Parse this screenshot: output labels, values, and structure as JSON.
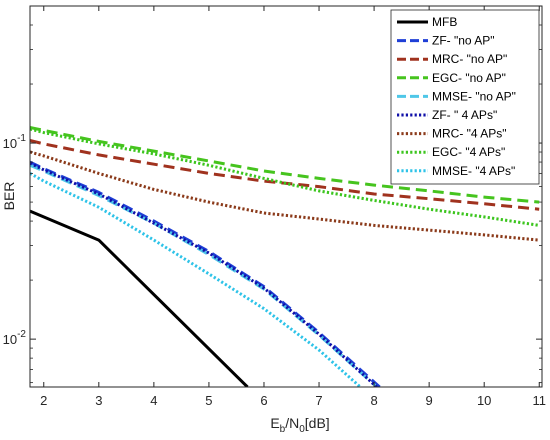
{
  "chart_data": {
    "type": "line",
    "title": "",
    "xlabel": "E_b/N_0[dB]",
    "xlabel_main": "E",
    "xlabel_sub1": "b",
    "xlabel_mid": "/N",
    "xlabel_sub2": "0",
    "xlabel_tail": "[dB]",
    "ylabel": "BER",
    "xlim": [
      1.75,
      11.05
    ],
    "ylim": [
      0.0057,
      0.5
    ],
    "yscale": "log",
    "grid": false,
    "legend_position": "top-right",
    "xticks": [
      2,
      3,
      4,
      5,
      6,
      7,
      8,
      9,
      10,
      11
    ],
    "xtick_labels": [
      "2",
      "3",
      "4",
      "5",
      "6",
      "7",
      "8",
      "9",
      "10",
      "11"
    ],
    "yticks": [
      0.01,
      0.1
    ],
    "ytick_labels": [
      {
        "base": "10",
        "exp": "-2"
      },
      {
        "base": "10",
        "exp": "-1"
      }
    ],
    "series": [
      {
        "name": "MFB",
        "style": "solid",
        "color": "#000000",
        "x": [
          1.75,
          3,
          5.7
        ],
        "y": [
          0.045,
          0.032,
          0.0057
        ]
      },
      {
        "name": "ZF- \"no AP\"",
        "style": "dashed",
        "color": "#1f3fd6",
        "x": [
          1.75,
          2,
          3,
          4,
          5,
          6,
          7,
          8.1
        ],
        "y": [
          0.08,
          0.074,
          0.056,
          0.04,
          0.028,
          0.0185,
          0.0108,
          0.0057
        ]
      },
      {
        "name": "MRC- \"no  AP\"",
        "style": "dashed",
        "color": "#a0321e",
        "x": [
          1.75,
          2,
          3,
          4,
          5,
          6,
          7,
          8,
          9,
          10,
          11
        ],
        "y": [
          0.103,
          0.099,
          0.087,
          0.078,
          0.07,
          0.064,
          0.06,
          0.055,
          0.052,
          0.049,
          0.046
        ]
      },
      {
        "name": "EGC- \"no AP\"",
        "style": "dashed",
        "color": "#46c41e",
        "x": [
          1.75,
          2,
          3,
          4,
          5,
          6,
          7,
          8,
          9,
          10,
          11
        ],
        "y": [
          0.12,
          0.116,
          0.102,
          0.091,
          0.081,
          0.072,
          0.066,
          0.061,
          0.057,
          0.053,
          0.05
        ]
      },
      {
        "name": "MMSE- \"no AP\"",
        "style": "dashed",
        "color": "#4fc7e8",
        "x": [
          1.75,
          2,
          3,
          4,
          5,
          6,
          7,
          8.05
        ],
        "y": [
          0.077,
          0.072,
          0.054,
          0.039,
          0.027,
          0.018,
          0.0105,
          0.0057
        ]
      },
      {
        "name": "ZF- \" 4 APs\"",
        "style": "dotted",
        "color": "#1010a8",
        "x": [
          1.75,
          2,
          3,
          4,
          5,
          6,
          7,
          8.05
        ],
        "y": [
          0.079,
          0.073,
          0.055,
          0.039,
          0.0275,
          0.0182,
          0.0106,
          0.0057
        ]
      },
      {
        "name": "MRC- \"4 APs\"",
        "style": "dotted",
        "color": "#8b3a1a",
        "x": [
          1.75,
          2,
          3,
          4,
          5,
          6,
          7,
          8,
          9,
          10,
          11
        ],
        "y": [
          0.09,
          0.086,
          0.07,
          0.058,
          0.05,
          0.044,
          0.041,
          0.038,
          0.036,
          0.034,
          0.032
        ]
      },
      {
        "name": "EGC- \"4 APs\"",
        "style": "dotted",
        "color": "#3cc51e",
        "x": [
          1.75,
          2,
          3,
          4,
          5,
          6,
          7,
          8,
          9,
          10,
          11
        ],
        "y": [
          0.118,
          0.113,
          0.099,
          0.088,
          0.077,
          0.066,
          0.057,
          0.051,
          0.046,
          0.042,
          0.038
        ]
      },
      {
        "name": "MMSE- \"4 APs\"",
        "style": "dotted",
        "color": "#2ec3e8",
        "x": [
          1.75,
          2,
          3,
          4,
          5,
          6,
          7,
          7.75
        ],
        "y": [
          0.07,
          0.064,
          0.047,
          0.032,
          0.0215,
          0.0143,
          0.0088,
          0.0057
        ]
      }
    ]
  }
}
